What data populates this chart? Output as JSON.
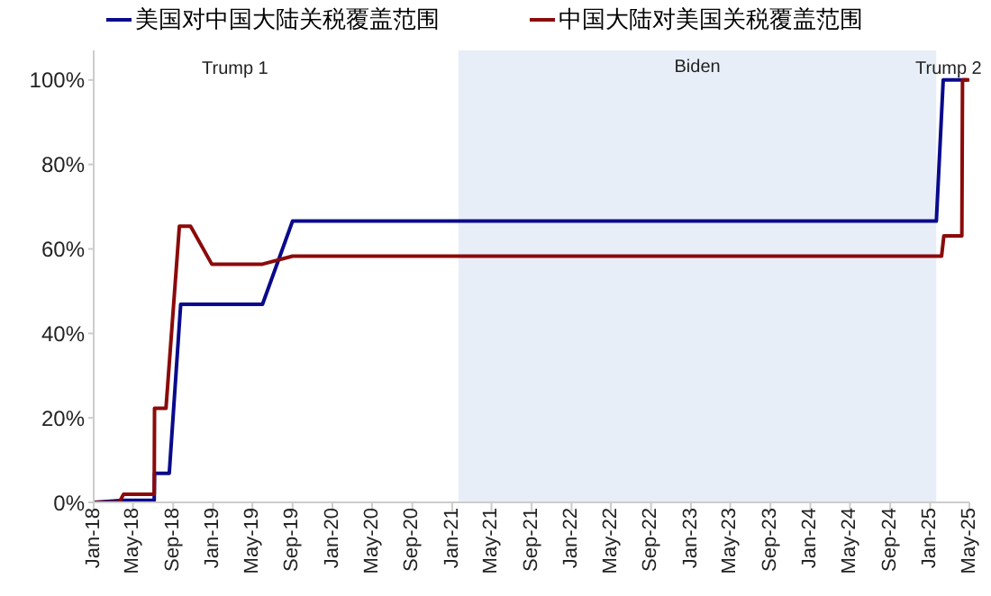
{
  "chart_data": {
    "type": "line",
    "series": [
      {
        "name": "美国对中国大陆关税覆盖范围",
        "color": "#0a0a8c",
        "x": [
          "2018-01-01",
          "2018-04-01",
          "2018-07-05",
          "2018-07-06",
          "2018-08-20",
          "2018-09-24",
          "2019-06-01",
          "2019-09-01",
          "2025-01-20",
          "2025-02-10",
          "2025-04-25"
        ],
        "values": [
          0,
          0.5,
          0.5,
          6.9,
          6.9,
          46.9,
          46.9,
          66.6,
          66.6,
          100,
          100
        ]
      },
      {
        "name": "中国大陆对美国关税覆盖范围",
        "color": "#8b0a0a",
        "x": [
          "2018-01-01",
          "2018-03-20",
          "2018-04-02",
          "2018-07-05",
          "2018-07-06",
          "2018-08-10",
          "2018-09-20",
          "2018-10-24",
          "2018-12-28",
          "2019-06-01",
          "2019-09-01",
          "2025-02-05",
          "2025-02-12",
          "2025-04-08",
          "2025-04-10",
          "2025-05-01"
        ],
        "values": [
          0,
          0,
          1.9,
          1.9,
          22.3,
          22.3,
          65.4,
          65.4,
          56.4,
          56.4,
          58.3,
          58.3,
          63.1,
          63.1,
          100,
          100
        ]
      }
    ],
    "xlim": [
      "2018-01",
      "2025-05"
    ],
    "xticks": [
      {
        "value": "2018-01",
        "label": "Jan-18"
      },
      {
        "value": "2018-05",
        "label": "May-18"
      },
      {
        "value": "2018-09",
        "label": "Sep-18"
      },
      {
        "value": "2019-01",
        "label": "Jan-19"
      },
      {
        "value": "2019-05",
        "label": "May-19"
      },
      {
        "value": "2019-09",
        "label": "Sep-19"
      },
      {
        "value": "2020-01",
        "label": "Jan-20"
      },
      {
        "value": "2020-05",
        "label": "May-20"
      },
      {
        "value": "2020-09",
        "label": "Sep-20"
      },
      {
        "value": "2021-01",
        "label": "Jan-21"
      },
      {
        "value": "2021-05",
        "label": "May-21"
      },
      {
        "value": "2021-09",
        "label": "Sep-21"
      },
      {
        "value": "2022-01",
        "label": "Jan-22"
      },
      {
        "value": "2022-05",
        "label": "May-22"
      },
      {
        "value": "2022-09",
        "label": "Sep-22"
      },
      {
        "value": "2023-01",
        "label": "Jan-23"
      },
      {
        "value": "2023-05",
        "label": "May-23"
      },
      {
        "value": "2023-09",
        "label": "Sep-23"
      },
      {
        "value": "2024-01",
        "label": "Jan-24"
      },
      {
        "value": "2024-05",
        "label": "May-24"
      },
      {
        "value": "2024-09",
        "label": "Sep-24"
      },
      {
        "value": "2025-01",
        "label": "Jan-25"
      },
      {
        "value": "2025-05",
        "label": "May-25"
      }
    ],
    "ylim": [
      0,
      107
    ],
    "yticks": [
      {
        "value": 0,
        "label": "0%"
      },
      {
        "value": 20,
        "label": "20%"
      },
      {
        "value": 40,
        "label": "40%"
      },
      {
        "value": 60,
        "label": "60%"
      },
      {
        "value": 80,
        "label": "80%"
      },
      {
        "value": 100,
        "label": "100%"
      }
    ],
    "bands": [
      {
        "axis": "x",
        "from": "2021-01-20",
        "to": "2025-01-20",
        "label": "Biden",
        "color": "#e8eef7"
      }
    ],
    "annotations": [
      "Trump 1",
      "Trump 2"
    ],
    "legend": "top",
    "grid": false,
    "marker": "none",
    "line_style": "solid"
  }
}
